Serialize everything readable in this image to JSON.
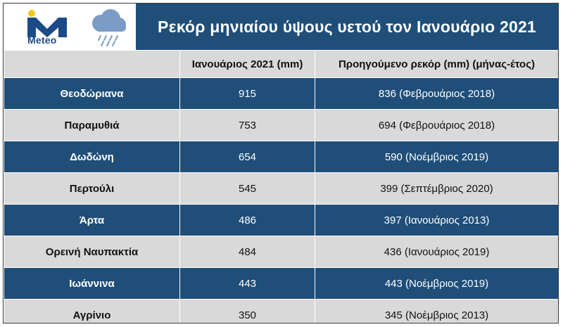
{
  "logo": {
    "text": "Meteo"
  },
  "icons": {
    "logo": "meteo-m-logo",
    "weather": "rain-cloud-icon"
  },
  "colors": {
    "header": "#1f4e79",
    "light_row": "#d9d9d9",
    "logo_blue": "#1b4a86",
    "logo_yellow": "#f5c518"
  },
  "title": "Ρεκόρ μηνιαίου ύψους υετού τον Ιανουάριο 2021",
  "table": {
    "headers": [
      "",
      "Ιανουάριος 2021 (mm)",
      "Προηγούμενο ρεκόρ (mm) (μήνας-έτος)"
    ],
    "rows": [
      {
        "station": "Θεοδώριανα",
        "jan2021": "915",
        "previous": "836 (Φεβρουάριος 2018)"
      },
      {
        "station": "Παραμυθιά",
        "jan2021": "753",
        "previous": "694 (Φεβρουάριος 2018)"
      },
      {
        "station": "Δωδώνη",
        "jan2021": "654",
        "previous": "590 (Νοέμβριος 2019)"
      },
      {
        "station": "Περτούλι",
        "jan2021": "545",
        "previous": "399 (Σεπτέμβριος 2020)"
      },
      {
        "station": "Άρτα",
        "jan2021": "486",
        "previous": "397 (Ιανουάριος 2013)"
      },
      {
        "station": "Ορεινή Ναυπακτία",
        "jan2021": "484",
        "previous": "436 (Ιανουάριος 2019)"
      },
      {
        "station": "Ιωάννινα",
        "jan2021": "443",
        "previous": "443 (Νοέμβριος 2019)"
      },
      {
        "station": "Αγρίνιο",
        "jan2021": "350",
        "previous": "345 (Νοέμβριος 2013)"
      }
    ]
  }
}
